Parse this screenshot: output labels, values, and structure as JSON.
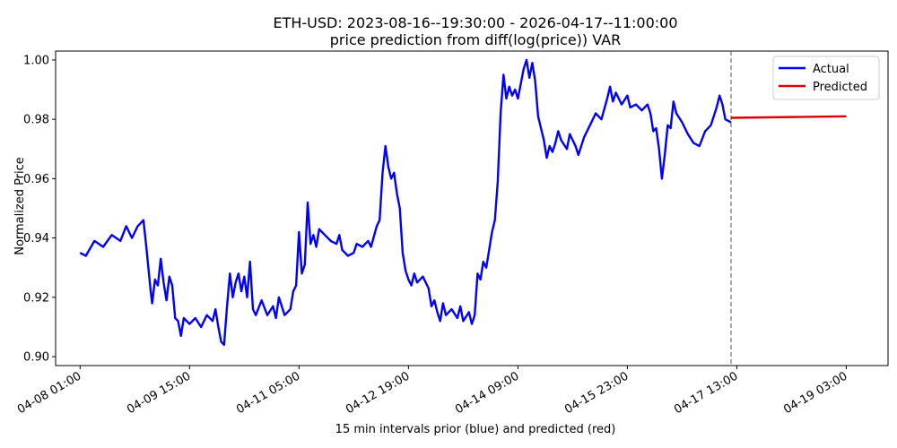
{
  "chart_data": {
    "type": "line",
    "title": "ETH-USD: 2023-08-16--19:30:00 - 2026-04-17--11:00:00",
    "subtitle": "price prediction from diff(log(price)) VAR",
    "xlabel": "15 min intervals prior (blue) and predicted (red)",
    "ylabel": "Normalized Price",
    "ylim": [
      0.9,
      1.0
    ],
    "yticks": [
      "0.90",
      "0.92",
      "0.94",
      "0.96",
      "0.98",
      "1.00"
    ],
    "xticks": [
      "04-08 01:00",
      "04-09 15:00",
      "04-11 05:00",
      "04-12 19:00",
      "04-14 09:00",
      "04-15 23:00",
      "04-17 13:00",
      "04-19 03:00"
    ],
    "grid": false,
    "legend_position": "top-right",
    "split_marker": "04-17 11:00 (dashed vertical line)",
    "series": [
      {
        "name": "Actual",
        "color": "#0000ff",
        "points": [
          [
            "04-08 01:00",
            0.935
          ],
          [
            "04-08 03:00",
            0.934
          ],
          [
            "04-08 06:00",
            0.939
          ],
          [
            "04-08 09:00",
            0.937
          ],
          [
            "04-08 12:00",
            0.941
          ],
          [
            "04-08 15:00",
            0.939
          ],
          [
            "04-08 17:00",
            0.944
          ],
          [
            "04-08 19:00",
            0.94
          ],
          [
            "04-08 21:00",
            0.944
          ],
          [
            "04-08 23:00",
            0.946
          ],
          [
            "04-09 00:00",
            0.937
          ],
          [
            "04-09 01:30",
            0.922
          ],
          [
            "04-09 02:00",
            0.918
          ],
          [
            "04-09 03:00",
            0.926
          ],
          [
            "04-09 04:00",
            0.924
          ],
          [
            "04-09 05:00",
            0.933
          ],
          [
            "04-09 06:00",
            0.925
          ],
          [
            "04-09 07:00",
            0.919
          ],
          [
            "04-09 08:00",
            0.927
          ],
          [
            "04-09 09:00",
            0.924
          ],
          [
            "04-09 10:00",
            0.913
          ],
          [
            "04-09 11:00",
            0.912
          ],
          [
            "04-09 12:00",
            0.907
          ],
          [
            "04-09 13:00",
            0.913
          ],
          [
            "04-09 15:00",
            0.911
          ],
          [
            "04-09 17:00",
            0.913
          ],
          [
            "04-09 19:00",
            0.91
          ],
          [
            "04-09 21:00",
            0.914
          ],
          [
            "04-09 23:00",
            0.912
          ],
          [
            "04-10 00:00",
            0.916
          ],
          [
            "04-10 01:00",
            0.91
          ],
          [
            "04-10 02:00",
            0.905
          ],
          [
            "04-10 03:00",
            0.904
          ],
          [
            "04-10 04:00",
            0.917
          ],
          [
            "04-10 05:00",
            0.928
          ],
          [
            "04-10 06:00",
            0.92
          ],
          [
            "04-10 07:00",
            0.925
          ],
          [
            "04-10 08:00",
            0.928
          ],
          [
            "04-10 09:00",
            0.922
          ],
          [
            "04-10 10:00",
            0.927
          ],
          [
            "04-10 11:00",
            0.92
          ],
          [
            "04-10 12:00",
            0.932
          ],
          [
            "04-10 13:00",
            0.916
          ],
          [
            "04-10 14:00",
            0.914
          ],
          [
            "04-10 16:00",
            0.919
          ],
          [
            "04-10 18:00",
            0.914
          ],
          [
            "04-10 20:00",
            0.917
          ],
          [
            "04-10 21:00",
            0.913
          ],
          [
            "04-10 22:00",
            0.92
          ],
          [
            "04-11 00:00",
            0.914
          ],
          [
            "04-11 02:00",
            0.916
          ],
          [
            "04-11 03:00",
            0.922
          ],
          [
            "04-11 04:00",
            0.924
          ],
          [
            "04-11 05:00",
            0.942
          ],
          [
            "04-11 06:00",
            0.928
          ],
          [
            "04-11 07:00",
            0.931
          ],
          [
            "04-11 08:00",
            0.952
          ],
          [
            "04-11 09:00",
            0.938
          ],
          [
            "04-11 10:00",
            0.941
          ],
          [
            "04-11 11:00",
            0.937
          ],
          [
            "04-11 12:00",
            0.943
          ],
          [
            "04-11 14:00",
            0.941
          ],
          [
            "04-11 16:00",
            0.939
          ],
          [
            "04-11 18:00",
            0.938
          ],
          [
            "04-11 19:00",
            0.941
          ],
          [
            "04-11 20:00",
            0.936
          ],
          [
            "04-11 22:00",
            0.934
          ],
          [
            "04-12 00:00",
            0.935
          ],
          [
            "04-12 01:00",
            0.938
          ],
          [
            "04-12 03:00",
            0.937
          ],
          [
            "04-12 05:00",
            0.939
          ],
          [
            "04-12 06:00",
            0.937
          ],
          [
            "04-12 08:00",
            0.944
          ],
          [
            "04-12 09:00",
            0.946
          ],
          [
            "04-12 10:00",
            0.962
          ],
          [
            "04-12 11:00",
            0.971
          ],
          [
            "04-12 12:00",
            0.964
          ],
          [
            "04-12 13:00",
            0.96
          ],
          [
            "04-12 14:00",
            0.962
          ],
          [
            "04-12 15:00",
            0.955
          ],
          [
            "04-12 16:00",
            0.95
          ],
          [
            "04-12 17:00",
            0.935
          ],
          [
            "04-12 18:00",
            0.929
          ],
          [
            "04-12 19:00",
            0.926
          ],
          [
            "04-12 20:00",
            0.924
          ],
          [
            "04-12 21:00",
            0.928
          ],
          [
            "04-12 22:00",
            0.925
          ],
          [
            "04-13 00:00",
            0.927
          ],
          [
            "04-13 02:00",
            0.923
          ],
          [
            "04-13 03:00",
            0.917
          ],
          [
            "04-13 04:00",
            0.919
          ],
          [
            "04-13 05:00",
            0.915
          ],
          [
            "04-13 06:00",
            0.912
          ],
          [
            "04-13 07:00",
            0.918
          ],
          [
            "04-13 08:00",
            0.914
          ],
          [
            "04-13 10:00",
            0.916
          ],
          [
            "04-13 12:00",
            0.913
          ],
          [
            "04-13 13:00",
            0.917
          ],
          [
            "04-13 14:00",
            0.912
          ],
          [
            "04-13 16:00",
            0.915
          ],
          [
            "04-13 17:00",
            0.911
          ],
          [
            "04-13 18:00",
            0.914
          ],
          [
            "04-13 19:00",
            0.928
          ],
          [
            "04-13 20:00",
            0.926
          ],
          [
            "04-13 21:00",
            0.932
          ],
          [
            "04-13 22:00",
            0.93
          ],
          [
            "04-13 23:00",
            0.936
          ],
          [
            "04-14 00:00",
            0.942
          ],
          [
            "04-14 01:00",
            0.946
          ],
          [
            "04-14 02:00",
            0.959
          ],
          [
            "04-14 03:00",
            0.982
          ],
          [
            "04-14 04:00",
            0.995
          ],
          [
            "04-14 05:00",
            0.987
          ],
          [
            "04-14 06:00",
            0.991
          ],
          [
            "04-14 07:00",
            0.988
          ],
          [
            "04-14 08:00",
            0.99
          ],
          [
            "04-14 09:00",
            0.987
          ],
          [
            "04-14 10:00",
            0.992
          ],
          [
            "04-14 11:00",
            0.997
          ],
          [
            "04-14 12:00",
            1.0
          ],
          [
            "04-14 13:00",
            0.994
          ],
          [
            "04-14 14:00",
            0.999
          ],
          [
            "04-14 15:00",
            0.993
          ],
          [
            "04-14 16:00",
            0.981
          ],
          [
            "04-14 17:00",
            0.977
          ],
          [
            "04-14 18:00",
            0.973
          ],
          [
            "04-14 19:00",
            0.967
          ],
          [
            "04-14 20:00",
            0.971
          ],
          [
            "04-14 21:00",
            0.969
          ],
          [
            "04-14 22:00",
            0.972
          ],
          [
            "04-14 23:00",
            0.976
          ],
          [
            "04-15 00:00",
            0.973
          ],
          [
            "04-15 02:00",
            0.97
          ],
          [
            "04-15 03:00",
            0.975
          ],
          [
            "04-15 05:00",
            0.971
          ],
          [
            "04-15 06:00",
            0.968
          ],
          [
            "04-15 08:00",
            0.974
          ],
          [
            "04-15 10:00",
            0.978
          ],
          [
            "04-15 12:00",
            0.982
          ],
          [
            "04-15 14:00",
            0.98
          ],
          [
            "04-15 16:00",
            0.987
          ],
          [
            "04-15 17:00",
            0.991
          ],
          [
            "04-15 18:00",
            0.986
          ],
          [
            "04-15 19:00",
            0.989
          ],
          [
            "04-15 21:00",
            0.985
          ],
          [
            "04-15 23:00",
            0.988
          ],
          [
            "04-16 00:00",
            0.984
          ],
          [
            "04-16 02:00",
            0.985
          ],
          [
            "04-16 04:00",
            0.983
          ],
          [
            "04-16 06:00",
            0.985
          ],
          [
            "04-16 07:00",
            0.982
          ],
          [
            "04-16 08:00",
            0.976
          ],
          [
            "04-16 09:00",
            0.977
          ],
          [
            "04-16 10:00",
            0.97
          ],
          [
            "04-16 11:00",
            0.96
          ],
          [
            "04-16 12:00",
            0.968
          ],
          [
            "04-16 13:00",
            0.978
          ],
          [
            "04-16 14:00",
            0.977
          ],
          [
            "04-16 15:00",
            0.986
          ],
          [
            "04-16 16:00",
            0.982
          ],
          [
            "04-16 18:00",
            0.979
          ],
          [
            "04-16 20:00",
            0.975
          ],
          [
            "04-16 22:00",
            0.972
          ],
          [
            "04-17 00:00",
            0.971
          ],
          [
            "04-17 02:00",
            0.976
          ],
          [
            "04-17 04:00",
            0.978
          ],
          [
            "04-17 06:00",
            0.984
          ],
          [
            "04-17 07:00",
            0.988
          ],
          [
            "04-17 08:00",
            0.985
          ],
          [
            "04-17 09:00",
            0.98
          ],
          [
            "04-17 11:00",
            0.979
          ]
        ]
      },
      {
        "name": "Predicted",
        "color": "#dd0000",
        "points": [
          [
            "04-17 11:00",
            0.9805
          ],
          [
            "04-19 03:00",
            0.981
          ]
        ]
      }
    ]
  }
}
